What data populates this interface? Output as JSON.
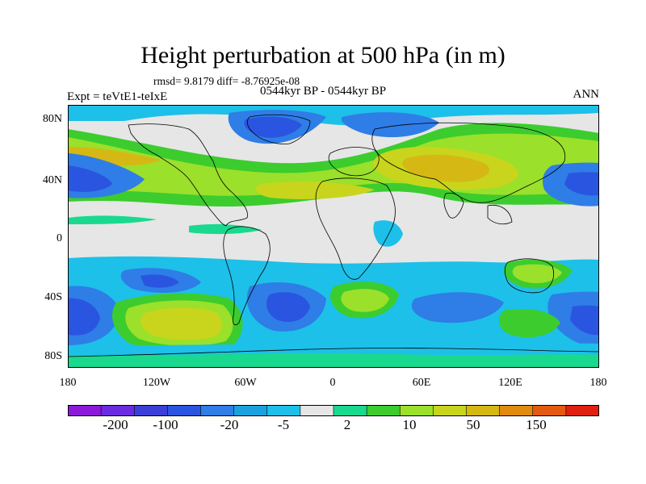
{
  "title": "Height perturbation at 500 hPa (in m)",
  "stats": "rmsd= 9.8179 diff= -8.76925e-08",
  "subtitle": "0544kyr BP - 0544kyr BP",
  "experiment": "Expt = teVtE1-teIxE",
  "season": "ANN",
  "lat_ticks": [
    "80N",
    "40N",
    "0",
    "40S",
    "80S"
  ],
  "lon_ticks": [
    "180",
    "120W",
    "60W",
    "0",
    "60E",
    "120E",
    "180"
  ],
  "colorbar": {
    "colors": [
      "#8c1ad8",
      "#6a2ce0",
      "#3b3fd6",
      "#2a55e0",
      "#2f7de6",
      "#1aa2e0",
      "#1dc0e8",
      "#e6e6e6",
      "#19d98e",
      "#3ccc2e",
      "#9be02a",
      "#c8d51c",
      "#d6b814",
      "#e08a10",
      "#e35a10",
      "#e02010"
    ],
    "labels": [
      "-200",
      "-100",
      "-20",
      "-5",
      "2",
      "10",
      "50",
      "150"
    ]
  }
}
